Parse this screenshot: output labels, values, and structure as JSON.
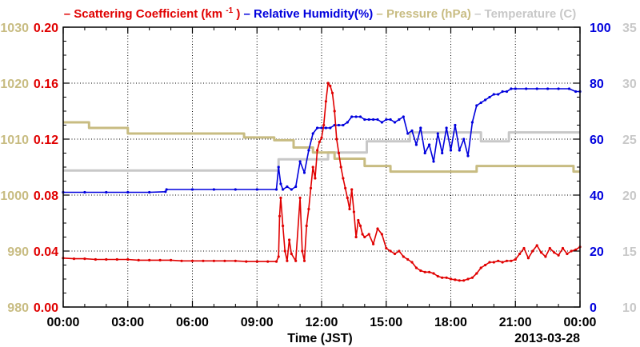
{
  "chart_data": {
    "type": "line",
    "xlabel": "Time (JST)",
    "date_label": "2013-03-28",
    "x_ticks": [
      "00:00",
      "03:00",
      "06:00",
      "09:00",
      "12:00",
      "15:00",
      "18:00",
      "21:00",
      "00:00"
    ],
    "x_range_hours": [
      0,
      24
    ],
    "grid": true,
    "legend_position": "top",
    "legend_labels": {
      "scattering_prefix": "Scattering Coefficient (km",
      "scattering_sup": "-1",
      "scattering_suffix": ")",
      "humidity": "Relative Humidity(%)",
      "pressure": "Pressure (hPa)",
      "temperature": "Temperature (C)"
    },
    "axes": {
      "pressure": {
        "ylim": [
          980,
          1030
        ],
        "ticks": [
          "1030",
          "1020",
          "1010",
          "1000",
          "990",
          "980"
        ],
        "color": "#c8bc82"
      },
      "scattering": {
        "ylim": [
          0.0,
          0.2
        ],
        "ticks": [
          "0.20",
          "0.16",
          "0.12",
          "0.08",
          "0.04",
          "0.00"
        ],
        "color": "#e00000"
      },
      "humidity": {
        "ylim": [
          0,
          100
        ],
        "ticks": [
          "100",
          "80",
          "60",
          "40",
          "20",
          "0"
        ],
        "color": "#0000dd"
      },
      "temperature": {
        "ylim": [
          10,
          35
        ],
        "ticks": [
          "35",
          "30",
          "25",
          "20",
          "15",
          "10"
        ],
        "color": "#c8c8c8"
      }
    },
    "series": [
      {
        "name": "Scattering Coefficient",
        "axis": "scattering",
        "color": "#e00000",
        "x": [
          0,
          0.5,
          1,
          1.5,
          2,
          2.5,
          3,
          3.5,
          4,
          4.5,
          5,
          5.5,
          6,
          6.5,
          7,
          7.5,
          8,
          8.5,
          9,
          9.5,
          9.9,
          10.0,
          10.05,
          10.1,
          10.2,
          10.3,
          10.4,
          10.5,
          10.6,
          10.8,
          11.0,
          11.1,
          11.2,
          11.3,
          11.4,
          11.5,
          11.6,
          11.7,
          11.8,
          11.9,
          12.0,
          12.1,
          12.2,
          12.3,
          12.4,
          12.5,
          12.6,
          12.7,
          12.8,
          12.9,
          13.0,
          13.1,
          13.2,
          13.3,
          13.4,
          13.5,
          13.6,
          13.7,
          13.8,
          13.9,
          14.0,
          14.2,
          14.4,
          14.6,
          14.8,
          15.0,
          15.2,
          15.4,
          15.6,
          15.8,
          16.0,
          16.2,
          16.4,
          16.6,
          16.8,
          17.0,
          17.2,
          17.4,
          17.6,
          17.8,
          18.0,
          18.2,
          18.4,
          18.6,
          18.8,
          19.0,
          19.2,
          19.4,
          19.6,
          19.8,
          20.0,
          20.2,
          20.4,
          20.6,
          20.8,
          21.0,
          21.2,
          21.4,
          21.6,
          21.8,
          22.0,
          22.2,
          22.4,
          22.6,
          22.8,
          23.0,
          23.2,
          23.4,
          23.6,
          23.8,
          24.0
        ],
        "values": [
          0.035,
          0.0345,
          0.0345,
          0.034,
          0.034,
          0.034,
          0.034,
          0.0335,
          0.0335,
          0.0335,
          0.0335,
          0.033,
          0.033,
          0.033,
          0.033,
          0.033,
          0.033,
          0.0325,
          0.0325,
          0.0325,
          0.0325,
          0.036,
          0.065,
          0.078,
          0.058,
          0.04,
          0.033,
          0.048,
          0.038,
          0.033,
          0.078,
          0.04,
          0.033,
          0.058,
          0.07,
          0.085,
          0.1,
          0.092,
          0.112,
          0.118,
          0.121,
          0.13,
          0.147,
          0.16,
          0.158,
          0.153,
          0.14,
          0.12,
          0.11,
          0.1,
          0.092,
          0.085,
          0.078,
          0.07,
          0.084,
          0.068,
          0.05,
          0.062,
          0.058,
          0.052,
          0.05,
          0.052,
          0.045,
          0.056,
          0.052,
          0.042,
          0.04,
          0.038,
          0.04,
          0.036,
          0.034,
          0.032,
          0.028,
          0.026,
          0.025,
          0.025,
          0.024,
          0.022,
          0.021,
          0.021,
          0.02,
          0.0195,
          0.019,
          0.019,
          0.02,
          0.021,
          0.024,
          0.028,
          0.03,
          0.032,
          0.032,
          0.033,
          0.032,
          0.033,
          0.033,
          0.034,
          0.038,
          0.042,
          0.035,
          0.04,
          0.044,
          0.039,
          0.036,
          0.042,
          0.039,
          0.037,
          0.042,
          0.038,
          0.04,
          0.041,
          0.043
        ],
        "points": true
      },
      {
        "name": "Relative Humidity",
        "axis": "humidity",
        "color": "#0000dd",
        "x": [
          0,
          1,
          2,
          3,
          4,
          4.75,
          4.8,
          6,
          7,
          8,
          9,
          9.9,
          10.0,
          10.1,
          10.2,
          10.4,
          10.6,
          10.8,
          11.0,
          11.2,
          11.4,
          11.6,
          11.8,
          12.0,
          12.2,
          12.4,
          12.6,
          12.8,
          13.0,
          13.2,
          13.4,
          13.6,
          13.8,
          14.0,
          14.2,
          14.4,
          14.6,
          14.8,
          15.0,
          15.2,
          15.4,
          15.6,
          15.8,
          16.0,
          16.2,
          16.4,
          16.6,
          16.8,
          17.0,
          17.2,
          17.4,
          17.6,
          17.8,
          18.0,
          18.2,
          18.4,
          18.6,
          18.8,
          19.0,
          19.2,
          19.4,
          19.6,
          19.8,
          20.0,
          20.2,
          20.4,
          20.6,
          20.8,
          21.0,
          21.5,
          22.0,
          22.5,
          23.0,
          23.5,
          23.8,
          24.0
        ],
        "values": [
          41,
          41,
          41,
          41,
          41,
          41.2,
          42,
          42,
          42,
          42,
          42,
          42,
          50,
          44,
          42,
          43,
          42,
          43,
          52,
          48,
          56,
          62,
          64,
          64,
          64,
          64,
          65,
          65,
          65,
          66,
          68,
          68,
          68,
          67,
          67,
          67,
          67,
          66,
          67,
          67,
          66,
          67,
          68,
          62,
          63,
          58,
          64,
          55,
          58,
          52,
          62,
          55,
          64,
          56,
          65,
          56,
          60,
          54,
          66,
          72,
          73,
          74,
          75,
          76,
          76,
          77,
          77,
          78,
          78,
          78,
          78,
          78,
          78,
          78,
          77,
          77
        ],
        "points": true
      },
      {
        "name": "Pressure",
        "axis": "pressure",
        "color": "#c8bc82",
        "x": [
          0,
          1.2,
          1.2,
          3.0,
          3.0,
          8.4,
          8.4,
          9.8,
          9.8,
          10.7,
          10.7,
          11.6,
          11.6,
          12.6,
          12.6,
          14.0,
          14.0,
          15.2,
          15.2,
          17.8,
          17.8,
          19.2,
          19.2,
          23.7,
          23.7,
          24.0
        ],
        "values": [
          1013,
          1013,
          1012,
          1012,
          1011,
          1011,
          1010.3,
          1010.3,
          1009.8,
          1009.8,
          1008.5,
          1008.5,
          1007.6,
          1007.6,
          1006.5,
          1006.5,
          1005.2,
          1005.2,
          1004.2,
          1004.2,
          1004.2,
          1004.2,
          1005.2,
          1005.2,
          1004.2,
          1004.2
        ],
        "points": false
      },
      {
        "name": "Temperature",
        "axis": "temperature",
        "color": "#c8c8c8",
        "x": [
          0,
          10.0,
          10.0,
          12.3,
          12.3,
          14.1,
          14.1,
          16.1,
          16.1,
          19.4,
          19.4,
          20.7,
          20.7,
          24.0
        ],
        "values": [
          22.2,
          22.2,
          23.2,
          23.2,
          23.8,
          23.8,
          24.8,
          24.8,
          25.6,
          25.6,
          24.8,
          24.8,
          25.6,
          25.6
        ],
        "points": false
      }
    ]
  }
}
